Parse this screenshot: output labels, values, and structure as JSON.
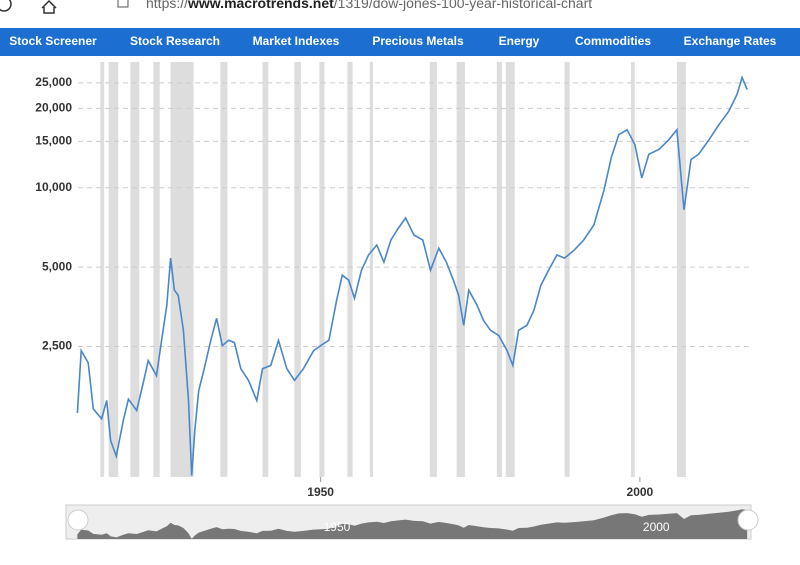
{
  "browser": {
    "url_scheme": "https://",
    "url_host": "www.macrotrends.net",
    "url_path": "/1319/dow-jones-100-year-historical-chart"
  },
  "nav": {
    "items": [
      "Stock Screener",
      "Stock Research",
      "Market Indexes",
      "Precious Metals",
      "Energy",
      "Commodities",
      "Exchange Rates"
    ]
  },
  "chart_data": {
    "type": "line",
    "log_scale": true,
    "grid": true,
    "xlim": [
      1912,
      2017.4
    ],
    "xticks": [
      1950,
      2000
    ],
    "ylim": [
      800,
      30000
    ],
    "yticks": [
      {
        "value": 2500,
        "label": "2,500"
      },
      {
        "value": 5000,
        "label": "5,000"
      },
      {
        "value": 10000,
        "label": "10,000"
      },
      {
        "value": 15000,
        "label": "15,000"
      },
      {
        "value": 20000,
        "label": "20,000"
      },
      {
        "value": 25000,
        "label": "25,000"
      }
    ],
    "shaded_ranges": [
      [
        1915.5,
        1916.1
      ],
      [
        1916.8,
        1918.3
      ],
      [
        1920.2,
        1921.6
      ],
      [
        1923.8,
        1924.8
      ],
      [
        1926.5,
        1930.1
      ],
      [
        1934.3,
        1935.4
      ],
      [
        1940.9,
        1941.8
      ],
      [
        1945.9,
        1946.9
      ],
      [
        1949.8,
        1950.6
      ],
      [
        1954.2,
        1955.0
      ],
      [
        1957.7,
        1958.2
      ],
      [
        1967.1,
        1968.2
      ],
      [
        1971.3,
        1972.6
      ],
      [
        1977.6,
        1978.4
      ],
      [
        1979.0,
        1980.4
      ],
      [
        1988.2,
        1989.0
      ],
      [
        1998.6,
        1999.2
      ],
      [
        2005.8,
        2007.2
      ]
    ],
    "shade_color": "#dddddd",
    "series": [
      {
        "color": "#4a86c8",
        "x": [
          1911.9,
          1912.5,
          1913.6,
          1914.4,
          1915.7,
          1916.5,
          1917.1,
          1918.0,
          1919.1,
          1919.9,
          1921.2,
          1922.3,
          1923.0,
          1924.3,
          1925.1,
          1925.9,
          1926.5,
          1927.1,
          1927.7,
          1928.5,
          1929.3,
          1929.8,
          1930.3,
          1930.9,
          1931.7,
          1932.8,
          1933.7,
          1934.6,
          1935.6,
          1936.5,
          1937.5,
          1938.7,
          1940.0,
          1940.9,
          1942.2,
          1943.4,
          1944.7,
          1945.9,
          1947.3,
          1948.9,
          1950.0,
          1951.3,
          1952.5,
          1953.4,
          1954.4,
          1955.3,
          1956.4,
          1957.5,
          1958.8,
          1959.9,
          1961.0,
          1962.2,
          1963.3,
          1964.6,
          1966.0,
          1967.2,
          1968.5,
          1969.7,
          1970.8,
          1971.6,
          1972.4,
          1973.2,
          1974.5,
          1975.5,
          1976.6,
          1977.9,
          1979.2,
          1980.1,
          1981.0,
          1982.3,
          1983.4,
          1984.5,
          1985.7,
          1987.0,
          1988.2,
          1989.7,
          1991.2,
          1992.8,
          1994.4,
          1995.5,
          1996.7,
          1998.0,
          1999.2,
          2000.3,
          2001.4,
          2003.0,
          2004.5,
          2005.8,
          2006.9,
          2008.0,
          2009.2,
          2010.8,
          2012.4,
          2013.9,
          2015.2,
          2016.0,
          2016.8
        ],
        "values": [
          1400,
          2410,
          2170,
          1450,
          1330,
          1560,
          1100,
          960,
          1310,
          1580,
          1430,
          1860,
          2210,
          1940,
          2640,
          3580,
          5410,
          4090,
          3910,
          2880,
          1560,
          810,
          1200,
          1700,
          2030,
          2640,
          3200,
          2520,
          2640,
          2590,
          2060,
          1860,
          1560,
          2060,
          2120,
          2640,
          2060,
          1860,
          2060,
          2410,
          2520,
          2640,
          3740,
          4660,
          4460,
          3810,
          4870,
          5560,
          6070,
          5220,
          6340,
          7040,
          7690,
          6620,
          6340,
          4870,
          5900,
          5220,
          4460,
          3910,
          3010,
          4090,
          3580,
          3140,
          2880,
          2750,
          2410,
          2120,
          2880,
          3010,
          3430,
          4270,
          4870,
          5560,
          5410,
          5800,
          6340,
          7230,
          9830,
          13000,
          15900,
          16600,
          14600,
          10900,
          13400,
          14000,
          15200,
          16600,
          8250,
          12800,
          13400,
          15200,
          17400,
          19500,
          22600,
          26200,
          23600
        ]
      }
    ]
  }
}
